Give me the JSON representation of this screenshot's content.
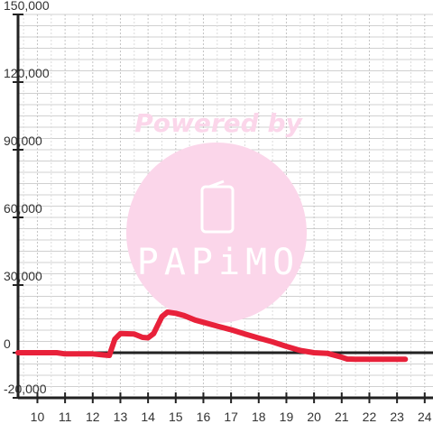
{
  "chart_data": {
    "type": "line",
    "title": "",
    "xlabel": "",
    "ylabel": "",
    "xlim": [
      9.3,
      24.3
    ],
    "ylim": [
      -20000,
      150000
    ],
    "x_ticks": [
      10,
      11,
      12,
      13,
      14,
      15,
      16,
      17,
      18,
      19,
      20,
      21,
      22,
      23,
      24
    ],
    "y_ticks": [
      150000,
      120000,
      90000,
      60000,
      30000,
      0,
      -20000
    ],
    "y_tick_labels": [
      "150,000",
      "120,000",
      "90,000",
      "60,000",
      "30,000",
      "0",
      "-20,000"
    ],
    "grid": true,
    "series": [
      {
        "color": "#e8213a",
        "points": [
          [
            9.3,
            0
          ],
          [
            10.0,
            0
          ],
          [
            10.7,
            0
          ],
          [
            11.0,
            -500
          ],
          [
            11.5,
            -500
          ],
          [
            12.0,
            -500
          ],
          [
            12.4,
            -1000
          ],
          [
            12.6,
            -1200
          ],
          [
            12.8,
            6000
          ],
          [
            13.0,
            8500
          ],
          [
            13.5,
            8300
          ],
          [
            13.8,
            6800
          ],
          [
            14.0,
            6600
          ],
          [
            14.2,
            8500
          ],
          [
            14.5,
            16000
          ],
          [
            14.7,
            18000
          ],
          [
            15.0,
            17500
          ],
          [
            15.3,
            16500
          ],
          [
            15.7,
            14500
          ],
          [
            16.0,
            13500
          ],
          [
            16.5,
            11800
          ],
          [
            17.0,
            10200
          ],
          [
            17.5,
            8300
          ],
          [
            18.0,
            6500
          ],
          [
            18.5,
            4800
          ],
          [
            19.0,
            2800
          ],
          [
            19.5,
            1000
          ],
          [
            20.0,
            0
          ],
          [
            20.5,
            -300
          ],
          [
            21.0,
            -2000
          ],
          [
            21.2,
            -2800
          ],
          [
            21.5,
            -2900
          ],
          [
            22.0,
            -2900
          ],
          [
            22.5,
            -2900
          ],
          [
            23.0,
            -2900
          ],
          [
            23.3,
            -2900
          ]
        ]
      }
    ]
  },
  "watermark": {
    "text": "Powered by",
    "brand": "PAPiMO",
    "color": "#fbd6ea"
  }
}
